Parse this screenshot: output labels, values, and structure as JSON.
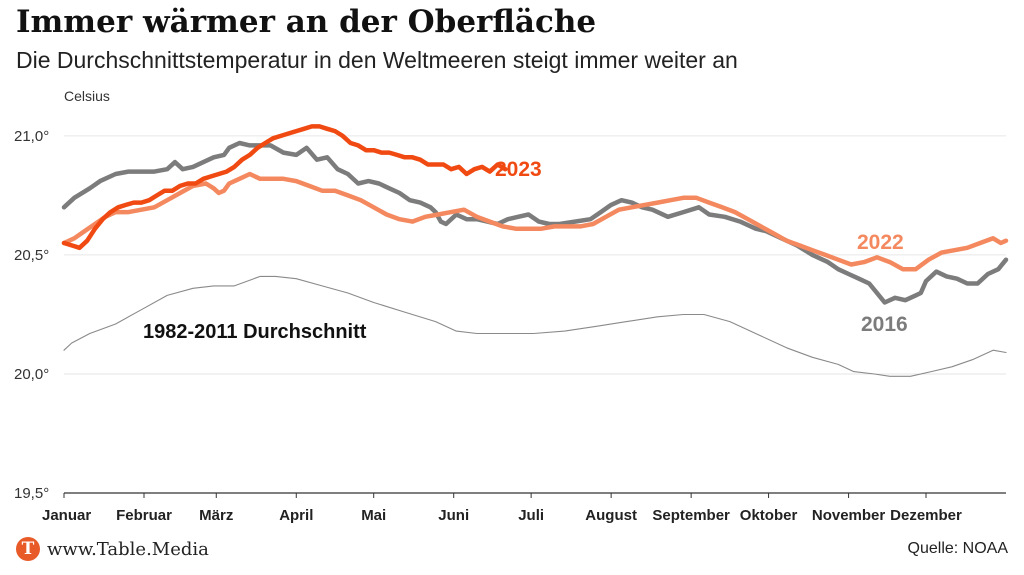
{
  "header": {
    "title": "Immer wärmer an der Oberfläche",
    "subtitle": "Die Durchschnittstemperatur in den Weltmeeren steigt immer weiter an"
  },
  "footer": {
    "logo_letter": "T",
    "site": "www.Table.Media",
    "source": "Quelle: NOAA"
  },
  "chart_data": {
    "type": "line",
    "unit_label": "Celsius",
    "ylim": [
      19.5,
      21.05
    ],
    "xlim": [
      0,
      365
    ],
    "yticks": [
      {
        "value": 21.0,
        "label": "21,0°"
      },
      {
        "value": 20.5,
        "label": "20,5°"
      },
      {
        "value": 20.0,
        "label": "20,0°"
      },
      {
        "value": 19.5,
        "label": "19,5°"
      }
    ],
    "months": [
      {
        "day": 0,
        "label": "Januar"
      },
      {
        "day": 31,
        "label": "Februar"
      },
      {
        "day": 59,
        "label": "März"
      },
      {
        "day": 90,
        "label": "April"
      },
      {
        "day": 120,
        "label": "Mai"
      },
      {
        "day": 151,
        "label": "Juni"
      },
      {
        "day": 181,
        "label": "Juli"
      },
      {
        "day": 212,
        "label": "August"
      },
      {
        "day": 243,
        "label": "September"
      },
      {
        "day": 273,
        "label": "Oktober"
      },
      {
        "day": 304,
        "label": "November"
      },
      {
        "day": 334,
        "label": "Dezember"
      }
    ],
    "colors": {
      "2023": "#f04a12",
      "2022": "#f4895f",
      "2016": "#7c7c7c",
      "avg": "#8a8a8a",
      "axis": "#333333"
    },
    "series": [
      {
        "name": "1982-2011 Durchschnitt",
        "color": "#8a8a8a",
        "x": [
          0,
          3,
          10,
          20,
          30,
          40,
          50,
          58,
          66,
          76,
          82,
          90,
          100,
          110,
          120,
          132,
          144,
          152,
          160,
          172,
          182,
          194,
          206,
          218,
          230,
          240,
          248,
          258,
          270,
          280,
          290,
          300,
          306,
          314,
          320,
          328,
          336,
          344,
          352,
          360,
          365
        ],
        "y": [
          20.1,
          20.13,
          20.17,
          20.21,
          20.27,
          20.33,
          20.36,
          20.37,
          20.37,
          20.41,
          20.41,
          20.4,
          20.37,
          20.34,
          20.3,
          20.26,
          20.22,
          20.18,
          20.17,
          20.17,
          20.17,
          20.18,
          20.2,
          20.22,
          20.24,
          20.25,
          20.25,
          20.22,
          20.16,
          20.11,
          20.07,
          20.04,
          20.01,
          20.0,
          19.99,
          19.99,
          20.01,
          20.03,
          20.06,
          20.1,
          20.09
        ]
      },
      {
        "name": "2016",
        "color": "#7c7c7c",
        "x": [
          0,
          4,
          10,
          14,
          20,
          25,
          30,
          35,
          40,
          43,
          46,
          50,
          54,
          58,
          62,
          64,
          68,
          72,
          76,
          80,
          85,
          90,
          94,
          98,
          102,
          106,
          110,
          114,
          118,
          122,
          126,
          130,
          134,
          138,
          142,
          144,
          146,
          148,
          152,
          156,
          160,
          164,
          168,
          172,
          176,
          180,
          184,
          188,
          192,
          198,
          204,
          208,
          212,
          216,
          220,
          224,
          228,
          234,
          240,
          246,
          250,
          256,
          262,
          268,
          272,
          278,
          284,
          290,
          296,
          300,
          304,
          308,
          312,
          315,
          318,
          322,
          326,
          330,
          332,
          334,
          338,
          342,
          346,
          350,
          354,
          358,
          362,
          365
        ],
        "y": [
          20.7,
          20.74,
          20.78,
          20.81,
          20.84,
          20.85,
          20.85,
          20.85,
          20.86,
          20.89,
          20.86,
          20.87,
          20.89,
          20.91,
          20.92,
          20.95,
          20.97,
          20.96,
          20.96,
          20.96,
          20.93,
          20.92,
          20.95,
          20.9,
          20.91,
          20.86,
          20.84,
          20.8,
          20.81,
          20.8,
          20.78,
          20.76,
          20.73,
          20.72,
          20.7,
          20.68,
          20.64,
          20.63,
          20.67,
          20.65,
          20.65,
          20.64,
          20.63,
          20.65,
          20.66,
          20.67,
          20.64,
          20.63,
          20.63,
          20.64,
          20.65,
          20.68,
          20.71,
          20.73,
          20.72,
          20.7,
          20.69,
          20.66,
          20.68,
          20.7,
          20.67,
          20.66,
          20.64,
          20.61,
          20.6,
          20.57,
          20.54,
          20.5,
          20.47,
          20.44,
          20.42,
          20.4,
          20.38,
          20.34,
          20.3,
          20.32,
          20.31,
          20.33,
          20.34,
          20.39,
          20.43,
          20.41,
          20.4,
          20.38,
          20.38,
          20.42,
          20.44,
          20.48
        ]
      },
      {
        "name": "2022",
        "color": "#f4895f",
        "x": [
          0,
          4,
          8,
          12,
          16,
          20,
          25,
          30,
          35,
          40,
          45,
          50,
          55,
          58,
          60,
          62,
          64,
          68,
          72,
          76,
          80,
          85,
          90,
          95,
          100,
          105,
          110,
          115,
          120,
          125,
          130,
          135,
          140,
          145,
          150,
          155,
          160,
          165,
          170,
          175,
          180,
          185,
          190,
          195,
          200,
          205,
          210,
          215,
          220,
          225,
          230,
          235,
          240,
          245,
          250,
          255,
          260,
          265,
          270,
          275,
          280,
          285,
          290,
          295,
          300,
          305,
          310,
          315,
          320,
          325,
          330,
          335,
          340,
          345,
          350,
          355,
          360,
          363,
          365
        ],
        "y": [
          20.55,
          20.57,
          20.6,
          20.63,
          20.66,
          20.68,
          20.68,
          20.69,
          20.7,
          20.73,
          20.76,
          20.79,
          20.8,
          20.78,
          20.76,
          20.77,
          20.8,
          20.82,
          20.84,
          20.82,
          20.82,
          20.82,
          20.81,
          20.79,
          20.77,
          20.77,
          20.75,
          20.73,
          20.7,
          20.67,
          20.65,
          20.64,
          20.66,
          20.67,
          20.68,
          20.69,
          20.66,
          20.64,
          20.62,
          20.61,
          20.61,
          20.61,
          20.62,
          20.62,
          20.62,
          20.63,
          20.66,
          20.69,
          20.7,
          20.71,
          20.72,
          20.73,
          20.74,
          20.74,
          20.72,
          20.7,
          20.68,
          20.65,
          20.62,
          20.59,
          20.56,
          20.54,
          20.52,
          20.5,
          20.48,
          20.46,
          20.47,
          20.49,
          20.47,
          20.44,
          20.44,
          20.48,
          20.51,
          20.52,
          20.53,
          20.55,
          20.57,
          20.55,
          20.56
        ]
      },
      {
        "name": "2023",
        "color": "#f04a12",
        "x": [
          0,
          3,
          6,
          9,
          12,
          15,
          18,
          21,
          24,
          27,
          30,
          33,
          36,
          39,
          42,
          45,
          48,
          51,
          54,
          57,
          60,
          63,
          66,
          69,
          72,
          75,
          78,
          81,
          84,
          87,
          90,
          93,
          96,
          99,
          102,
          105,
          108,
          111,
          114,
          117,
          120,
          123,
          126,
          129,
          132,
          135,
          138,
          141,
          144,
          147,
          150,
          153,
          156,
          159,
          162,
          165,
          168,
          171
        ],
        "y": [
          20.55,
          20.54,
          20.53,
          20.56,
          20.61,
          20.65,
          20.68,
          20.7,
          20.71,
          20.72,
          20.72,
          20.73,
          20.75,
          20.77,
          20.77,
          20.79,
          20.8,
          20.8,
          20.82,
          20.83,
          20.84,
          20.85,
          20.87,
          20.9,
          20.92,
          20.95,
          20.97,
          20.99,
          21.0,
          21.01,
          21.02,
          21.03,
          21.04,
          21.04,
          21.03,
          21.02,
          21.0,
          20.97,
          20.96,
          20.94,
          20.94,
          20.93,
          20.93,
          20.92,
          20.91,
          20.91,
          20.9,
          20.88,
          20.88,
          20.88,
          20.86,
          20.87,
          20.84,
          20.86,
          20.87,
          20.85,
          20.88,
          20.86
        ]
      }
    ],
    "annotations": [
      {
        "text": "2023",
        "series": "2023"
      },
      {
        "text": "2022",
        "series": "2022"
      },
      {
        "text": "2016",
        "series": "2016"
      },
      {
        "text": "1982-2011 Durchschnitt",
        "series": "1982-2011 Durchschnitt"
      }
    ]
  }
}
